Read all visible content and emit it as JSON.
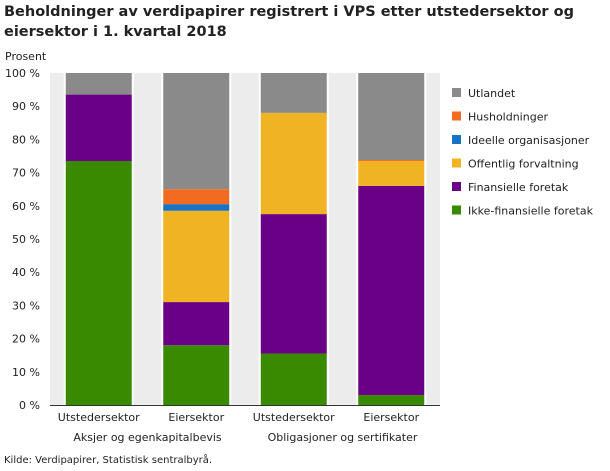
{
  "title": "Beholdninger av verdipapirer registrert i VPS etter utstedersektor og eiersektor i 1. kvartal 2018",
  "source": "Kilde: Verdipapirer, Statistisk sentralbyrå.",
  "chart_data": {
    "type": "bar",
    "stacked": true,
    "title": "Beholdninger av verdipapirer registrert i VPS etter utstedersektor og eiersektor i 1. kvartal 2018",
    "ylabel": "Prosent",
    "ylim": [
      0,
      100
    ],
    "yticks": [
      "0 %",
      "10 %",
      "20 %",
      "30 %",
      "40 %",
      "50 %",
      "60 %",
      "70 %",
      "80 %",
      "90 %",
      "100 %"
    ],
    "categories": [
      "Utstedersektor",
      "Eiersektor",
      "Utstedersektor",
      "Eiersektor"
    ],
    "groups": [
      {
        "label": "Aksjer og egenkapitalbevis",
        "categories": [
          0,
          1
        ]
      },
      {
        "label": "Obligasjoner og sertifikater",
        "categories": [
          2,
          3
        ]
      }
    ],
    "series": [
      {
        "name": "Ikke-finansielle foretak",
        "color": "#3a8a00",
        "values": [
          73.5,
          18,
          15.5,
          3
        ]
      },
      {
        "name": "Finansielle foretak",
        "color": "#6a0088",
        "values": [
          20,
          13,
          42,
          63
        ]
      },
      {
        "name": "Offentlig forvaltning",
        "color": "#f0b323",
        "values": [
          0,
          27.5,
          30.5,
          7.5
        ]
      },
      {
        "name": "Ideelle organisasjoner",
        "color": "#1a72c4",
        "values": [
          0,
          2,
          0,
          0
        ]
      },
      {
        "name": "Husholdninger",
        "color": "#f26b21",
        "values": [
          0,
          4.5,
          0,
          0.3
        ]
      },
      {
        "name": "Utlandet",
        "color": "#8a8a8a",
        "values": [
          6.5,
          35,
          12,
          26.2
        ]
      }
    ],
    "legend_position": "right",
    "grid": false
  }
}
